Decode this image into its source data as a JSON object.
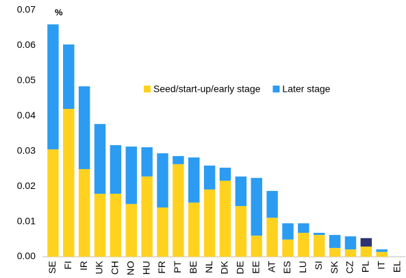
{
  "chart_data": {
    "type": "stacked_bar",
    "unit_label": "%",
    "categories": [
      "SE",
      "FI",
      "IR",
      "UK",
      "CH",
      "NO",
      "HU",
      "FR",
      "PT",
      "BE",
      "NL",
      "DK",
      "DE",
      "EE",
      "AT",
      "ES",
      "LU",
      "SI",
      "SK",
      "CZ",
      "PL",
      "IT",
      "EL"
    ],
    "series": [
      {
        "name": "Seed/start-up/early stage",
        "color": "#ffd21f",
        "values": [
          0.0305,
          0.042,
          0.0249,
          0.0179,
          0.0179,
          0.015,
          0.0228,
          0.014,
          0.0263,
          0.0154,
          0.0191,
          0.0216,
          0.0144,
          0.006,
          0.0111,
          0.0049,
          0.0068,
          0.0062,
          0.0025,
          0.0021,
          0.0029,
          0.0014,
          0
        ]
      },
      {
        "name": "Later stage",
        "color": "#2b9cf2",
        "point_colors": {
          "20": "#2c3370"
        },
        "values": [
          0.0355,
          0.0183,
          0.0235,
          0.0198,
          0.0138,
          0.0163,
          0.0083,
          0.0154,
          0.0023,
          0.0128,
          0.0068,
          0.0037,
          0.0084,
          0.0164,
          0.0076,
          0.0046,
          0.0027,
          0.0006,
          0.0037,
          0.0037,
          0.0024,
          0.0007,
          0
        ]
      }
    ],
    "ylim": [
      0,
      0.07
    ],
    "yticks": [
      {
        "value": 0,
        "label": "0.00"
      },
      0.01,
      0.02,
      0.03,
      0.04,
      0.05,
      0.06,
      0.07
    ],
    "legend": "center"
  }
}
